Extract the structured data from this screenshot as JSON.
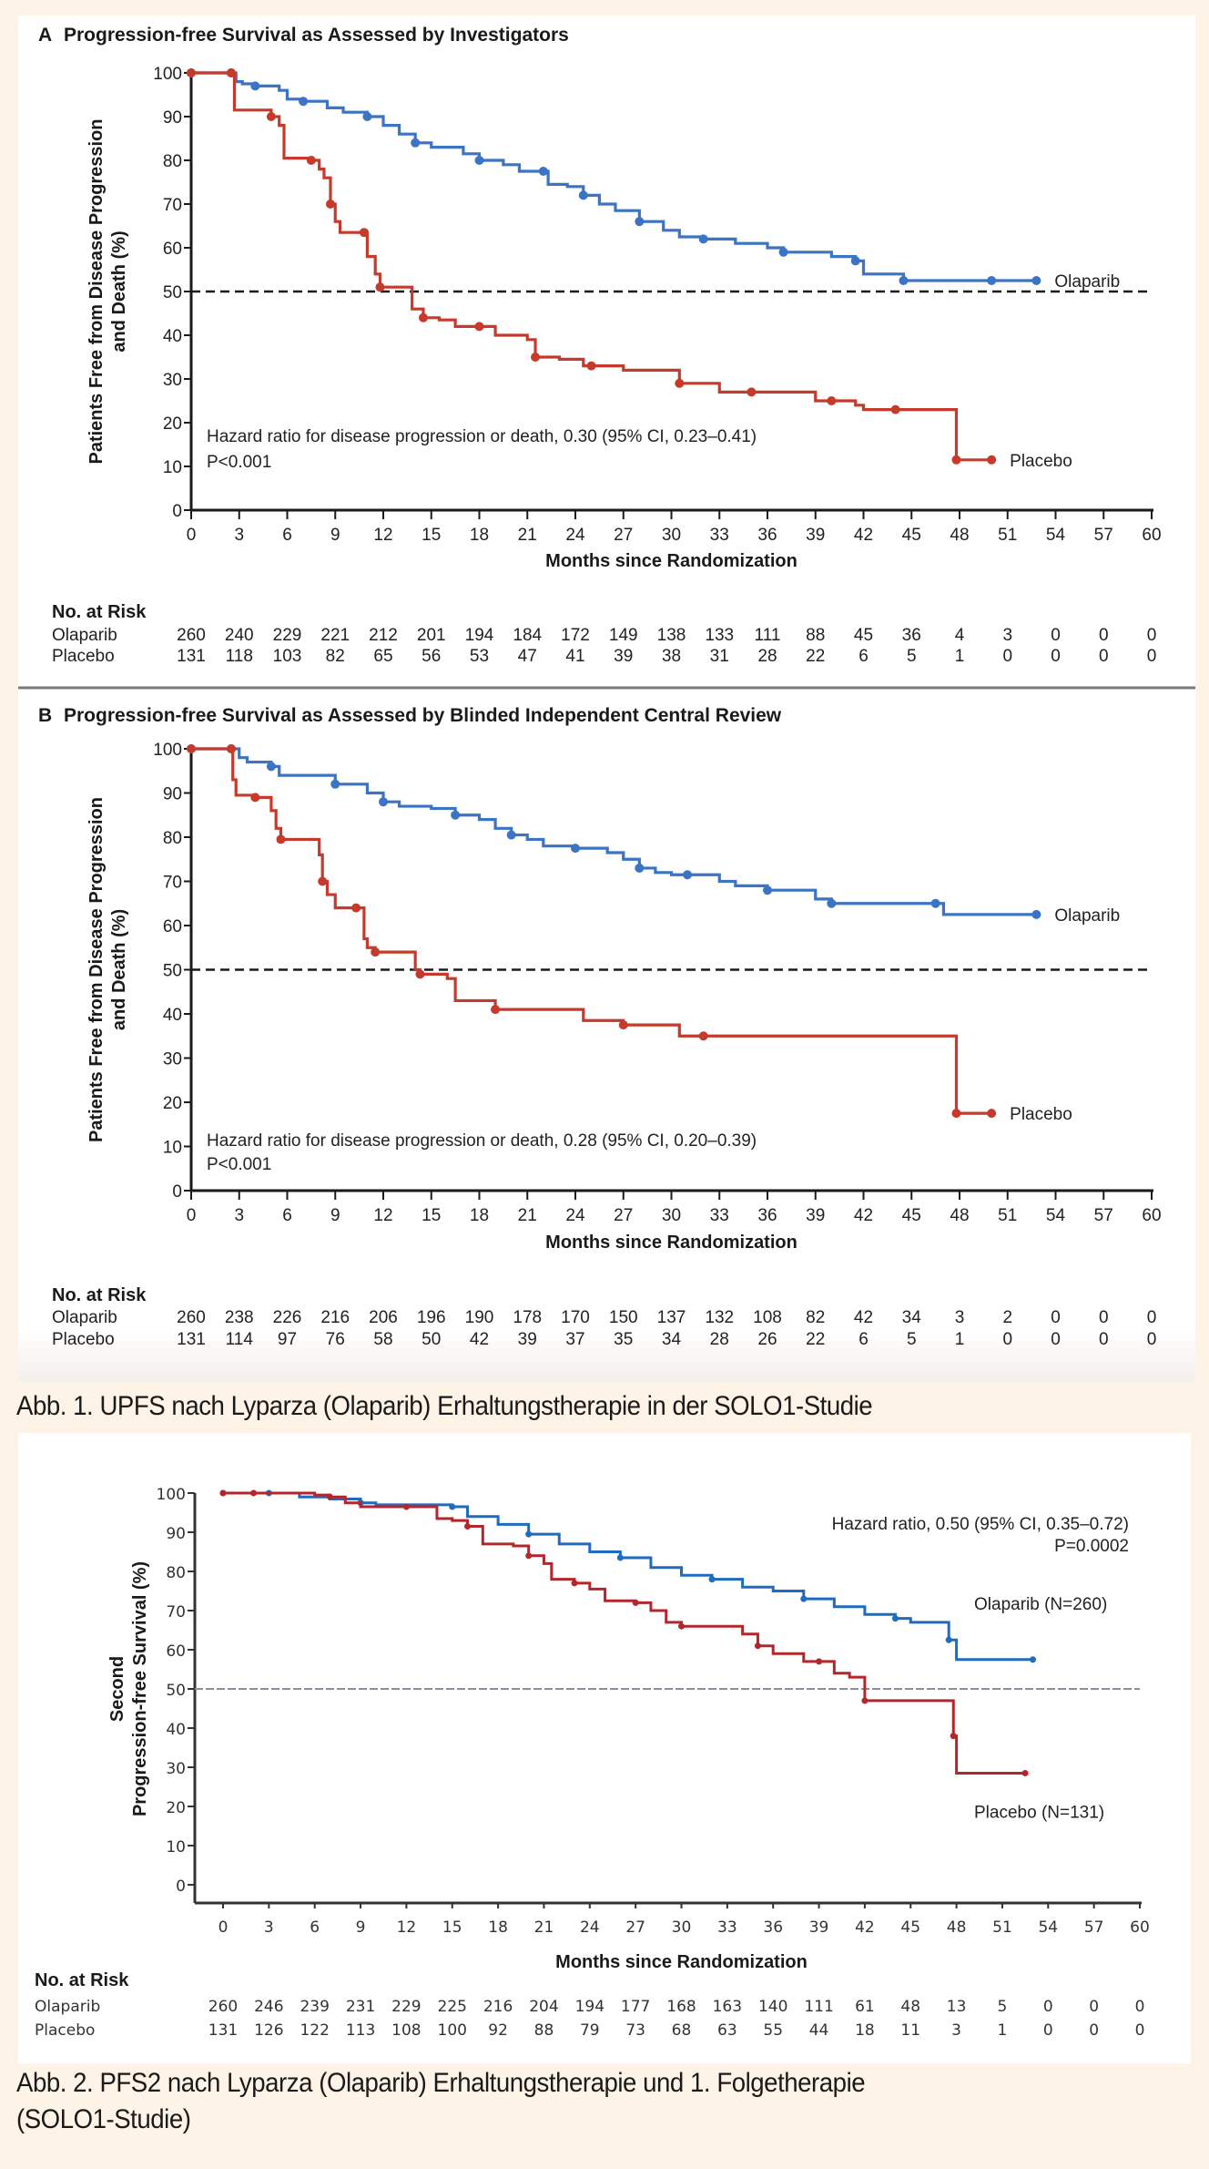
{
  "colors": {
    "olaparib": "#3b74c4",
    "placebo": "#c63a2c",
    "olaparib3": "#1f6bbf",
    "placebo3": "#b3262b",
    "background": "#fdf3e7"
  },
  "captions": {
    "fig1": "Abb. 1. UPFS nach Lyparza (Olaparib) Erhaltungstherapie in der SOLO1-Studie",
    "fig2_line1": "Abb. 2. PFS2 nach Lyparza (Olaparib) Erhaltungstherapie und 1. Folgetherapie",
    "fig2_line2": "(SOLO1-Studie)"
  },
  "chart_data": [
    {
      "id": "A",
      "type": "line",
      "panel_letter": "A",
      "title": "Progression-free Survival as Assessed by Investigators",
      "ylabel_line1": "Patients Free from Disease Progression",
      "ylabel_line2": "and Death (%)",
      "xlabel": "Months since Randomization",
      "xlim": [
        0,
        60
      ],
      "ylim": [
        0,
        100
      ],
      "xticks": [
        0,
        3,
        6,
        9,
        12,
        15,
        18,
        21,
        24,
        27,
        30,
        33,
        36,
        39,
        42,
        45,
        48,
        51,
        54,
        57,
        60
      ],
      "yticks": [
        0,
        10,
        20,
        30,
        40,
        50,
        60,
        70,
        80,
        90,
        100
      ],
      "reference_line": 50,
      "annotation_line1": "Hazard ratio for disease progression or death, 0.30 (95% CI, 0.23–0.41)",
      "annotation_line2": "P<0.001",
      "series": [
        {
          "name": "Olaparib",
          "color_key": "olaparib",
          "x": [
            0,
            2.5,
            2.8,
            3.2,
            4,
            5.5,
            6,
            7,
            8.5,
            9.5,
            11,
            12,
            13,
            14,
            15,
            17,
            18,
            19.5,
            20.5,
            22,
            22.3,
            23.5,
            24.5,
            25.5,
            26.5,
            28,
            29.5,
            30.5,
            32,
            34,
            36,
            37,
            38.5,
            40,
            41.5,
            42,
            43.5,
            44.5,
            46,
            48,
            50,
            52.8
          ],
          "y": [
            100,
            100,
            98,
            97.5,
            97,
            96,
            94,
            93.5,
            92,
            91,
            90,
            88,
            86,
            84,
            83,
            81.5,
            80,
            79,
            77.5,
            77.5,
            74.5,
            74,
            72,
            70,
            68.5,
            66,
            64,
            62.5,
            62,
            61,
            60,
            59,
            59,
            58,
            57,
            54,
            54,
            52.5,
            52.5,
            52.5,
            52.5,
            52.5
          ]
        },
        {
          "name": "Placebo",
          "color_key": "placebo",
          "x": [
            0,
            2.5,
            2.7,
            4.5,
            5,
            5.5,
            5.8,
            7.5,
            8,
            8.3,
            8.7,
            9,
            9.3,
            10.8,
            11,
            11.5,
            11.8,
            13.5,
            13.8,
            14.5,
            15.5,
            16.5,
            18,
            19,
            21,
            21.5,
            23,
            24.5,
            25,
            27,
            30,
            30.5,
            32,
            33,
            35,
            38,
            39,
            40,
            41.5,
            42,
            44,
            46,
            47.5,
            47.8,
            50
          ],
          "y": [
            100,
            100,
            91.5,
            91.5,
            90,
            88,
            80.5,
            80,
            78,
            76,
            70,
            66,
            63.5,
            63.5,
            58,
            54,
            51,
            51,
            46,
            44,
            43.5,
            42,
            42,
            40,
            39,
            35,
            34.5,
            33,
            33,
            32,
            32,
            29,
            29,
            27,
            27,
            27,
            25,
            25,
            24,
            23,
            23,
            23,
            23,
            11.5,
            11.5
          ]
        }
      ],
      "series_labels": {
        "olaparib": "Olaparib",
        "placebo": "Placebo"
      },
      "risk_table": {
        "header": "No. at Risk",
        "rows": [
          {
            "label": "Olaparib",
            "values": [
              "260",
              "240",
              "229",
              "221",
              "212",
              "201",
              "194",
              "184",
              "172",
              "149",
              "138",
              "133",
              "111",
              "88",
              "45",
              "36",
              "4",
              "3",
              "0",
              "0",
              "0"
            ]
          },
          {
            "label": "Placebo",
            "values": [
              "131",
              "118",
              "103",
              "82",
              "65",
              "56",
              "53",
              "47",
              "41",
              "39",
              "38",
              "31",
              "28",
              "22",
              "6",
              "5",
              "1",
              "0",
              "0",
              "0",
              "0"
            ]
          }
        ]
      }
    },
    {
      "id": "B",
      "type": "line",
      "panel_letter": "B",
      "title": "Progression-free Survival as Assessed by Blinded Independent Central Review",
      "ylabel_line1": "Patients Free from Disease Progression",
      "ylabel_line2": "and Death (%)",
      "xlabel": "Months since Randomization",
      "xlim": [
        0,
        60
      ],
      "ylim": [
        0,
        100
      ],
      "xticks": [
        0,
        3,
        6,
        9,
        12,
        15,
        18,
        21,
        24,
        27,
        30,
        33,
        36,
        39,
        42,
        45,
        48,
        51,
        54,
        57,
        60
      ],
      "yticks": [
        0,
        10,
        20,
        30,
        40,
        50,
        60,
        70,
        80,
        90,
        100
      ],
      "reference_line": 50,
      "annotation_line1": "Hazard ratio for disease progression or death, 0.28 (95% CI, 0.20–0.39)",
      "annotation_line2": "P<0.001",
      "series": [
        {
          "name": "Olaparib",
          "color_key": "olaparib",
          "x": [
            0,
            2.5,
            3,
            3.5,
            5,
            5.5,
            8,
            9,
            10,
            11,
            12,
            13,
            15,
            16.5,
            18,
            19,
            20,
            21,
            22,
            24,
            26,
            27,
            28,
            29,
            30,
            31,
            33,
            34,
            36,
            38,
            39,
            40,
            42,
            45,
            46.5,
            47,
            48,
            52.8
          ],
          "y": [
            100,
            100,
            98,
            97,
            96,
            94,
            94,
            92,
            92,
            90,
            88,
            87,
            86.5,
            85,
            84,
            82,
            80.5,
            79.5,
            78,
            77.5,
            76.5,
            75,
            73,
            72,
            71.5,
            71.5,
            70,
            69,
            68,
            68,
            66,
            65,
            65,
            65,
            65,
            62.5,
            62.5,
            62.5
          ]
        },
        {
          "name": "Placebo",
          "color_key": "placebo",
          "x": [
            0,
            2.5,
            2.6,
            2.8,
            4,
            5,
            5.3,
            5.6,
            7.5,
            8,
            8.2,
            8.5,
            9,
            10.3,
            10.8,
            11,
            11.5,
            13.5,
            14,
            14.3,
            16,
            16.5,
            19,
            22,
            24.5,
            27,
            30,
            30.5,
            32,
            40,
            47,
            47.8,
            50
          ],
          "y": [
            100,
            100,
            93,
            89.5,
            89,
            86,
            82,
            79.5,
            79.5,
            76,
            70,
            67,
            64,
            64,
            57,
            55,
            54,
            54,
            50,
            49,
            48,
            43,
            41,
            41,
            38.5,
            37.5,
            37.5,
            35,
            35,
            35,
            35,
            17.5,
            17.5
          ]
        }
      ],
      "series_labels": {
        "olaparib": "Olaparib",
        "placebo": "Placebo"
      },
      "risk_table": {
        "header": "No. at Risk",
        "rows": [
          {
            "label": "Olaparib",
            "values": [
              "260",
              "238",
              "226",
              "216",
              "206",
              "196",
              "190",
              "178",
              "170",
              "150",
              "137",
              "132",
              "108",
              "82",
              "42",
              "34",
              "3",
              "2",
              "0",
              "0",
              "0"
            ]
          },
          {
            "label": "Placebo",
            "values": [
              "131",
              "114",
              "97",
              "76",
              "58",
              "50",
              "42",
              "39",
              "37",
              "35",
              "34",
              "28",
              "26",
              "22",
              "6",
              "5",
              "1",
              "0",
              "0",
              "0",
              "0"
            ]
          }
        ]
      }
    },
    {
      "id": "C",
      "type": "line",
      "panel_letter": "",
      "title": "",
      "ylabel_line1": "Second",
      "ylabel_line2": "Progression-free Survival (%)",
      "xlabel": "Months since Randomization",
      "xlim": [
        0,
        60
      ],
      "ylim": [
        0,
        100
      ],
      "xticks": [
        0,
        3,
        6,
        9,
        12,
        15,
        18,
        21,
        24,
        27,
        30,
        33,
        36,
        39,
        42,
        45,
        48,
        51,
        54,
        57,
        60
      ],
      "yticks": [
        0,
        10,
        20,
        30,
        40,
        50,
        60,
        70,
        80,
        90,
        100
      ],
      "reference_line": 50,
      "annotation_line1": "Hazard ratio, 0.50 (95% CI, 0.35–0.72)",
      "annotation_line2": "P=0.0002",
      "series": [
        {
          "name": "Olaparib (N=260)",
          "color_key": "olaparib3",
          "x": [
            0,
            3,
            5,
            7,
            9,
            10,
            14,
            15,
            16,
            18,
            20,
            22,
            24,
            26,
            28,
            30,
            32,
            34,
            36,
            38,
            40,
            42,
            44,
            45,
            47,
            47.5,
            48,
            53
          ],
          "y": [
            100,
            100,
            99,
            98.5,
            97.5,
            97,
            97,
            96.5,
            94,
            92,
            89.5,
            87,
            85,
            83.5,
            81,
            79,
            78,
            76,
            75,
            73,
            71,
            69,
            68,
            67,
            67,
            62.5,
            57.5,
            57.5
          ]
        },
        {
          "name": "Placebo (N=131)",
          "color_key": "placebo3",
          "x": [
            0,
            2,
            5,
            6,
            7,
            8,
            9,
            12,
            14,
            15,
            16,
            17,
            19,
            20,
            21,
            21.5,
            23,
            24,
            25,
            27,
            28,
            29,
            30,
            32,
            34,
            35,
            36,
            38,
            39,
            40,
            41,
            42,
            44,
            47.5,
            47.8,
            48,
            52.5
          ],
          "y": [
            100,
            100,
            100,
            99.5,
            99,
            97.5,
            96.5,
            96.5,
            93.5,
            93,
            91.5,
            87,
            86.5,
            84,
            82,
            78,
            77,
            75.5,
            72.5,
            72,
            70,
            67,
            66,
            66,
            64,
            61,
            59,
            57,
            57,
            54,
            53,
            47,
            47,
            47,
            38,
            28.5,
            28.5
          ]
        }
      ],
      "series_labels": {
        "olaparib": "Olaparib (N=260)",
        "placebo": "Placebo (N=131)"
      },
      "risk_table": {
        "header": "No. at Risk",
        "rows": [
          {
            "label": "Olaparib",
            "values": [
              "260",
              "246",
              "239",
              "231",
              "229",
              "225",
              "216",
              "204",
              "194",
              "177",
              "168",
              "163",
              "140",
              "111",
              "61",
              "48",
              "13",
              "5",
              "0",
              "0",
              "0"
            ]
          },
          {
            "label": "Placebo",
            "values": [
              "131",
              "126",
              "122",
              "113",
              "108",
              "100",
              "92",
              "88",
              "79",
              "73",
              "68",
              "63",
              "55",
              "44",
              "18",
              "11",
              "3",
              "1",
              "0",
              "0",
              "0"
            ]
          }
        ]
      }
    }
  ]
}
